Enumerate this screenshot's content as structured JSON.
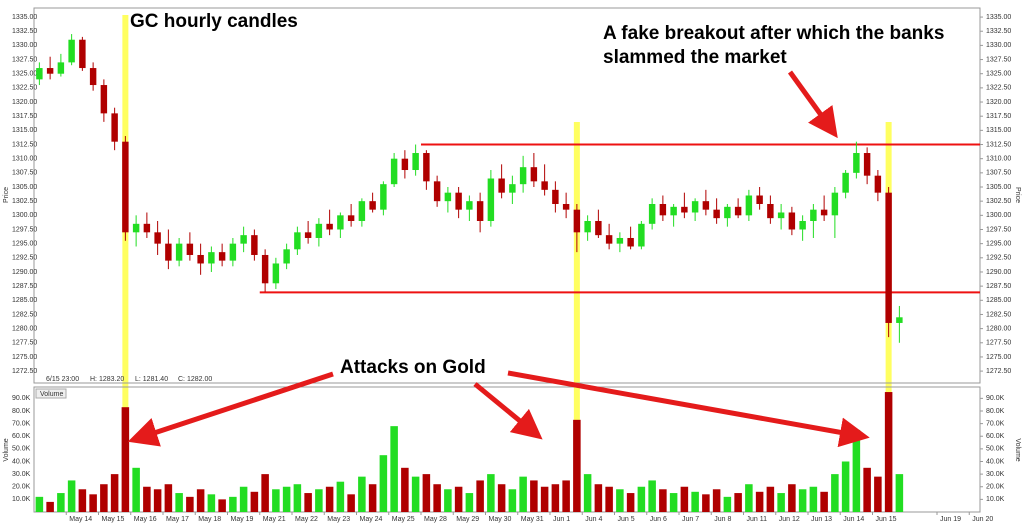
{
  "chart_data": {
    "type": "candlestick",
    "y_label": "Price",
    "info": [
      "6/15 23:00",
      "H: 1283.20",
      "L: 1281.40",
      "C: 1282.00"
    ],
    "annotations": [
      "GC hourly candles",
      "A fake breakout after which the banks",
      "slammed the market",
      "Attacks on Gold"
    ],
    "up_color": "#22dd22",
    "down_color": "#b00000",
    "level_color": "#ee1111",
    "highlight_color": "#ffff44",
    "levels": [
      1312.5,
      1286.4
    ],
    "ylim": [
      1270.4,
      1336.6
    ],
    "yticks": [
      {
        "value": 1272.5,
        "label": "1272.50"
      },
      {
        "value": 1275,
        "label": "1275.00"
      },
      {
        "value": 1277.5,
        "label": "1277.50"
      },
      {
        "value": 1280,
        "label": "1280.00"
      },
      {
        "value": 1282.5,
        "label": "1282.50"
      },
      {
        "value": 1285,
        "label": "1285.00"
      },
      {
        "value": 1287.5,
        "label": "1287.50"
      },
      {
        "value": 1290,
        "label": "1290.00"
      },
      {
        "value": 1292.5,
        "label": "1292.50"
      },
      {
        "value": 1295,
        "label": "1295.00"
      },
      {
        "value": 1297.5,
        "label": "1297.50"
      },
      {
        "value": 1300,
        "label": "1300.00"
      },
      {
        "value": 1302.5,
        "label": "1302.50"
      },
      {
        "value": 1305,
        "label": "1305.00"
      },
      {
        "value": 1307.5,
        "label": "1307.50"
      },
      {
        "value": 1310,
        "label": "1310.00"
      },
      {
        "value": 1312.5,
        "label": "1312.50"
      },
      {
        "value": 1315,
        "label": "1315.00"
      },
      {
        "value": 1317.5,
        "label": "1317.50"
      },
      {
        "value": 1320,
        "label": "1320.00"
      },
      {
        "value": 1322.5,
        "label": "1322.50"
      },
      {
        "value": 1325,
        "label": "1325.00"
      },
      {
        "value": 1327.5,
        "label": "1327.50"
      },
      {
        "value": 1330,
        "label": "1330.00"
      },
      {
        "value": 1332.5,
        "label": "1332.50"
      },
      {
        "value": 1335,
        "label": "1335.00"
      }
    ],
    "categories": [
      null,
      null,
      null,
      "May 14",
      null,
      null,
      "May 15",
      null,
      null,
      "May 16",
      null,
      null,
      "May 17",
      null,
      null,
      "May 18",
      null,
      null,
      "May 19",
      null,
      null,
      "May 21",
      null,
      null,
      "May 22",
      null,
      null,
      "May 23",
      null,
      null,
      "May 24",
      null,
      null,
      "May 25",
      null,
      null,
      "May 28",
      null,
      null,
      "May 29",
      null,
      null,
      "May 30",
      null,
      null,
      "May 31",
      null,
      null,
      "Jun 1",
      null,
      null,
      "Jun 4",
      null,
      null,
      "Jun 5",
      null,
      null,
      "Jun 6",
      null,
      null,
      "Jun 7",
      null,
      null,
      "Jun 8",
      null,
      null,
      "Jun 11",
      null,
      null,
      "Jun 12",
      null,
      null,
      "Jun 13",
      null,
      null,
      "Jun 14",
      null,
      null,
      "Jun 15",
      null,
      null,
      null,
      null,
      null,
      "Jun 19",
      null,
      null,
      "Jun 20"
    ],
    "open": [
      1324,
      1326,
      1325,
      1327,
      1331,
      1326,
      1323,
      1318,
      1313,
      1297,
      1298.5,
      1297,
      1295,
      1292,
      1295,
      1293,
      1291.5,
      1293.5,
      1292,
      1295,
      1296.5,
      1293,
      1288,
      1291.5,
      1294,
      1297,
      1296,
      1298.5,
      1297.5,
      1300,
      1299,
      1302.5,
      1301,
      1305.5,
      1310,
      1308,
      1311,
      1306,
      1302.5,
      1304,
      1301,
      1302.5,
      1299,
      1306.5,
      1304,
      1305.5,
      1308.5,
      1306,
      1304.5,
      1302,
      1301,
      1297,
      1299,
      1296.5,
      1295,
      1296,
      1294.5,
      1298.5,
      1302,
      1300,
      1301.5,
      1300.5,
      1302.5,
      1301,
      1299.5,
      1301.5,
      1300,
      1303.5,
      1302,
      1299.5,
      1300.5,
      1297.5,
      1299,
      1301,
      1300,
      1304,
      1307.5,
      1311,
      1307,
      1304,
      1281,
      null,
      null,
      null,
      null,
      null,
      null,
      null
    ],
    "high": [
      1327,
      1328,
      1328.5,
      1332,
      1331.5,
      1327,
      1324,
      1319,
      1314,
      1300,
      1300.5,
      1299,
      1297.5,
      1296,
      1297,
      1295,
      1294.5,
      1295,
      1296,
      1298,
      1297.5,
      1294,
      1292.5,
      1295,
      1298,
      1299,
      1299.5,
      1301,
      1300.5,
      1302,
      1303,
      1304,
      1306,
      1311,
      1311.5,
      1312.5,
      1311.5,
      1307,
      1305,
      1305,
      1303.5,
      1304,
      1308,
      1309,
      1307,
      1310.5,
      1311,
      1309,
      1306,
      1304,
      1302,
      1300,
      1301,
      1298.5,
      1297,
      1298,
      1299,
      1303,
      1303.5,
      1302,
      1304,
      1303,
      1304.5,
      1303,
      1302,
      1303,
      1304.5,
      1305,
      1303.5,
      1302,
      1301.5,
      1300,
      1302,
      1303.5,
      1305,
      1308,
      1313,
      1312,
      1308,
      1305,
      1284,
      null,
      null,
      null,
      null,
      null,
      null,
      null
    ],
    "low": [
      1323,
      1324,
      1324.5,
      1326.5,
      1325.5,
      1322,
      1316.5,
      1311.5,
      1295.5,
      1294.5,
      1296,
      1293,
      1290.5,
      1291,
      1292,
      1289.5,
      1290,
      1291,
      1291,
      1293.5,
      1292,
      1286.5,
      1287,
      1290.5,
      1293,
      1295,
      1294.5,
      1296.5,
      1296,
      1298,
      1298,
      1300.5,
      1300,
      1305,
      1306.5,
      1307,
      1304.5,
      1301.5,
      1300.5,
      1299.5,
      1299,
      1297,
      1298,
      1303,
      1302,
      1304,
      1305,
      1303.5,
      1300.5,
      1299.5,
      1293.5,
      1295.5,
      1296,
      1294,
      1293.5,
      1294,
      1294,
      1297.5,
      1299,
      1298,
      1299.5,
      1299,
      1300,
      1298.5,
      1298,
      1299.5,
      1299,
      1301,
      1298.5,
      1297.5,
      1296.5,
      1295.5,
      1296,
      1299,
      1296,
      1303,
      1306.5,
      1305.5,
      1302.5,
      1278.5,
      1277.5,
      null,
      null,
      null,
      null,
      null,
      null,
      null
    ],
    "close": [
      1326,
      1325,
      1327,
      1331,
      1326,
      1323,
      1318,
      1313,
      1297,
      1298.5,
      1297,
      1295,
      1292,
      1295,
      1293,
      1291.5,
      1293.5,
      1292,
      1295,
      1296.5,
      1293,
      1288,
      1291.5,
      1294,
      1297,
      1296,
      1298.5,
      1297.5,
      1300,
      1299,
      1302.5,
      1301,
      1305.5,
      1310,
      1308,
      1311,
      1306,
      1302.5,
      1304,
      1301,
      1302.5,
      1299,
      1306.5,
      1304,
      1305.5,
      1308.5,
      1306,
      1304.5,
      1302,
      1301,
      1297,
      1299,
      1296.5,
      1295,
      1296,
      1294.5,
      1298.5,
      1302,
      1300,
      1301.5,
      1300.5,
      1302.5,
      1301,
      1299.5,
      1301.5,
      1300,
      1303.5,
      1302,
      1299.5,
      1300.5,
      1297.5,
      1299,
      1301,
      1300,
      1304,
      1307.5,
      1311,
      1307,
      1304,
      1281,
      1282,
      null,
      null,
      null,
      null,
      null,
      null,
      null
    ],
    "volume": {
      "label": "Volume",
      "pane_label": "Volume",
      "ylim": [
        0,
        99000
      ],
      "yticks": [
        {
          "value": 10000,
          "label": "10.0K"
        },
        {
          "value": 20000,
          "label": "20.0K"
        },
        {
          "value": 30000,
          "label": "30.0K"
        },
        {
          "value": 40000,
          "label": "40.0K"
        },
        {
          "value": 50000,
          "label": "50.0K"
        },
        {
          "value": 60000,
          "label": "60.0K"
        },
        {
          "value": 70000,
          "label": "70.0K"
        },
        {
          "value": 80000,
          "label": "80.0K"
        },
        {
          "value": 90000,
          "label": "90.0K"
        }
      ],
      "values": [
        12000,
        8000,
        15000,
        25000,
        18000,
        14000,
        22000,
        30000,
        83000,
        35000,
        20000,
        18000,
        22000,
        15000,
        12000,
        18000,
        14000,
        10000,
        12000,
        20000,
        16000,
        30000,
        18000,
        20000,
        22000,
        15000,
        18000,
        20000,
        24000,
        14000,
        28000,
        22000,
        45000,
        68000,
        35000,
        28000,
        30000,
        22000,
        18000,
        20000,
        15000,
        25000,
        30000,
        22000,
        18000,
        28000,
        25000,
        20000,
        22000,
        25000,
        73000,
        30000,
        22000,
        20000,
        18000,
        15000,
        20000,
        25000,
        18000,
        15000,
        20000,
        16000,
        14000,
        18000,
        12000,
        15000,
        22000,
        16000,
        20000,
        15000,
        22000,
        18000,
        20000,
        16000,
        30000,
        40000,
        65000,
        35000,
        28000,
        95000,
        30000,
        null,
        null,
        null,
        null,
        null,
        null,
        null
      ]
    }
  }
}
